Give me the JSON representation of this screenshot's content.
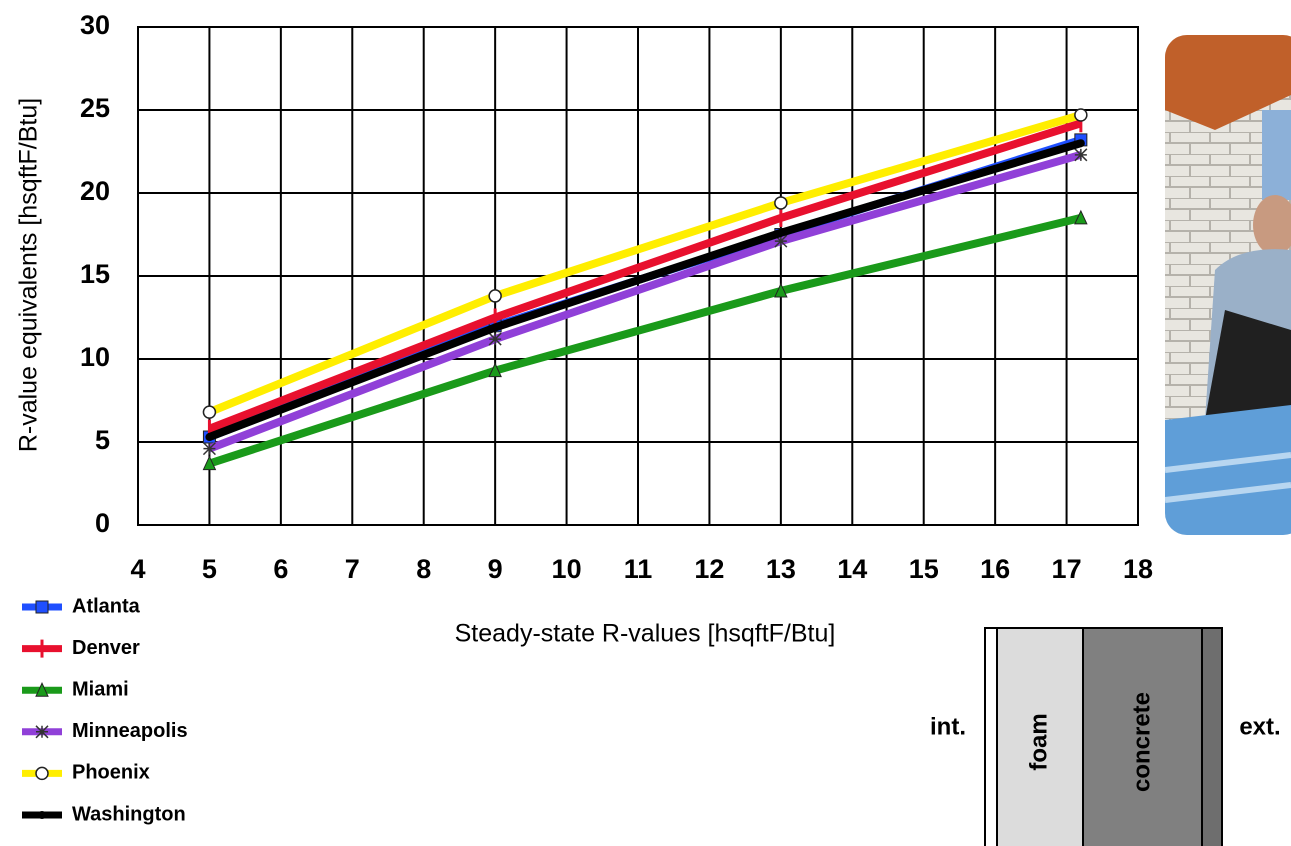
{
  "chart_data": {
    "type": "line",
    "x_label": "Steady-state R-values [hsqftF/Btu]",
    "y_label": "R-value equivalents [hsqftF/Btu]",
    "x": [
      5,
      9,
      13,
      17.2
    ],
    "series": [
      {
        "name": "Atlanta",
        "color": "#1f4fff",
        "marker": "square",
        "values": [
          5.3,
          12,
          17.5,
          23.2
        ]
      },
      {
        "name": "Denver",
        "color": "#e8102e",
        "marker": "plus",
        "values": [
          5.8,
          12.5,
          18.5,
          24.2
        ]
      },
      {
        "name": "Miami",
        "color": "#1a9a1a",
        "marker": "triangle",
        "values": [
          3.7,
          9.3,
          14.1,
          18.5
        ]
      },
      {
        "name": "Minneapolis",
        "color": "#9040d8",
        "marker": "star",
        "values": [
          4.6,
          11.2,
          17.1,
          22.3
        ]
      },
      {
        "name": "Phoenix",
        "color": "#ffee00",
        "marker": "circle",
        "values": [
          6.8,
          13.8,
          19.4,
          24.7
        ]
      },
      {
        "name": "Washington",
        "color": "#000000",
        "marker": "dot",
        "values": [
          5.3,
          11.9,
          17.6,
          23.0
        ]
      }
    ],
    "xlim": [
      4,
      18
    ],
    "xticks": [
      4,
      5,
      6,
      7,
      8,
      9,
      10,
      11,
      12,
      13,
      14,
      15,
      16,
      17,
      18
    ],
    "ylim": [
      0,
      30
    ],
    "yticks": [
      0,
      5,
      10,
      15,
      20,
      25,
      30
    ],
    "grid": true
  },
  "wall_diagram": {
    "interior": "int.",
    "exterior": "ext.",
    "layers": [
      "foam",
      "concrete"
    ]
  }
}
